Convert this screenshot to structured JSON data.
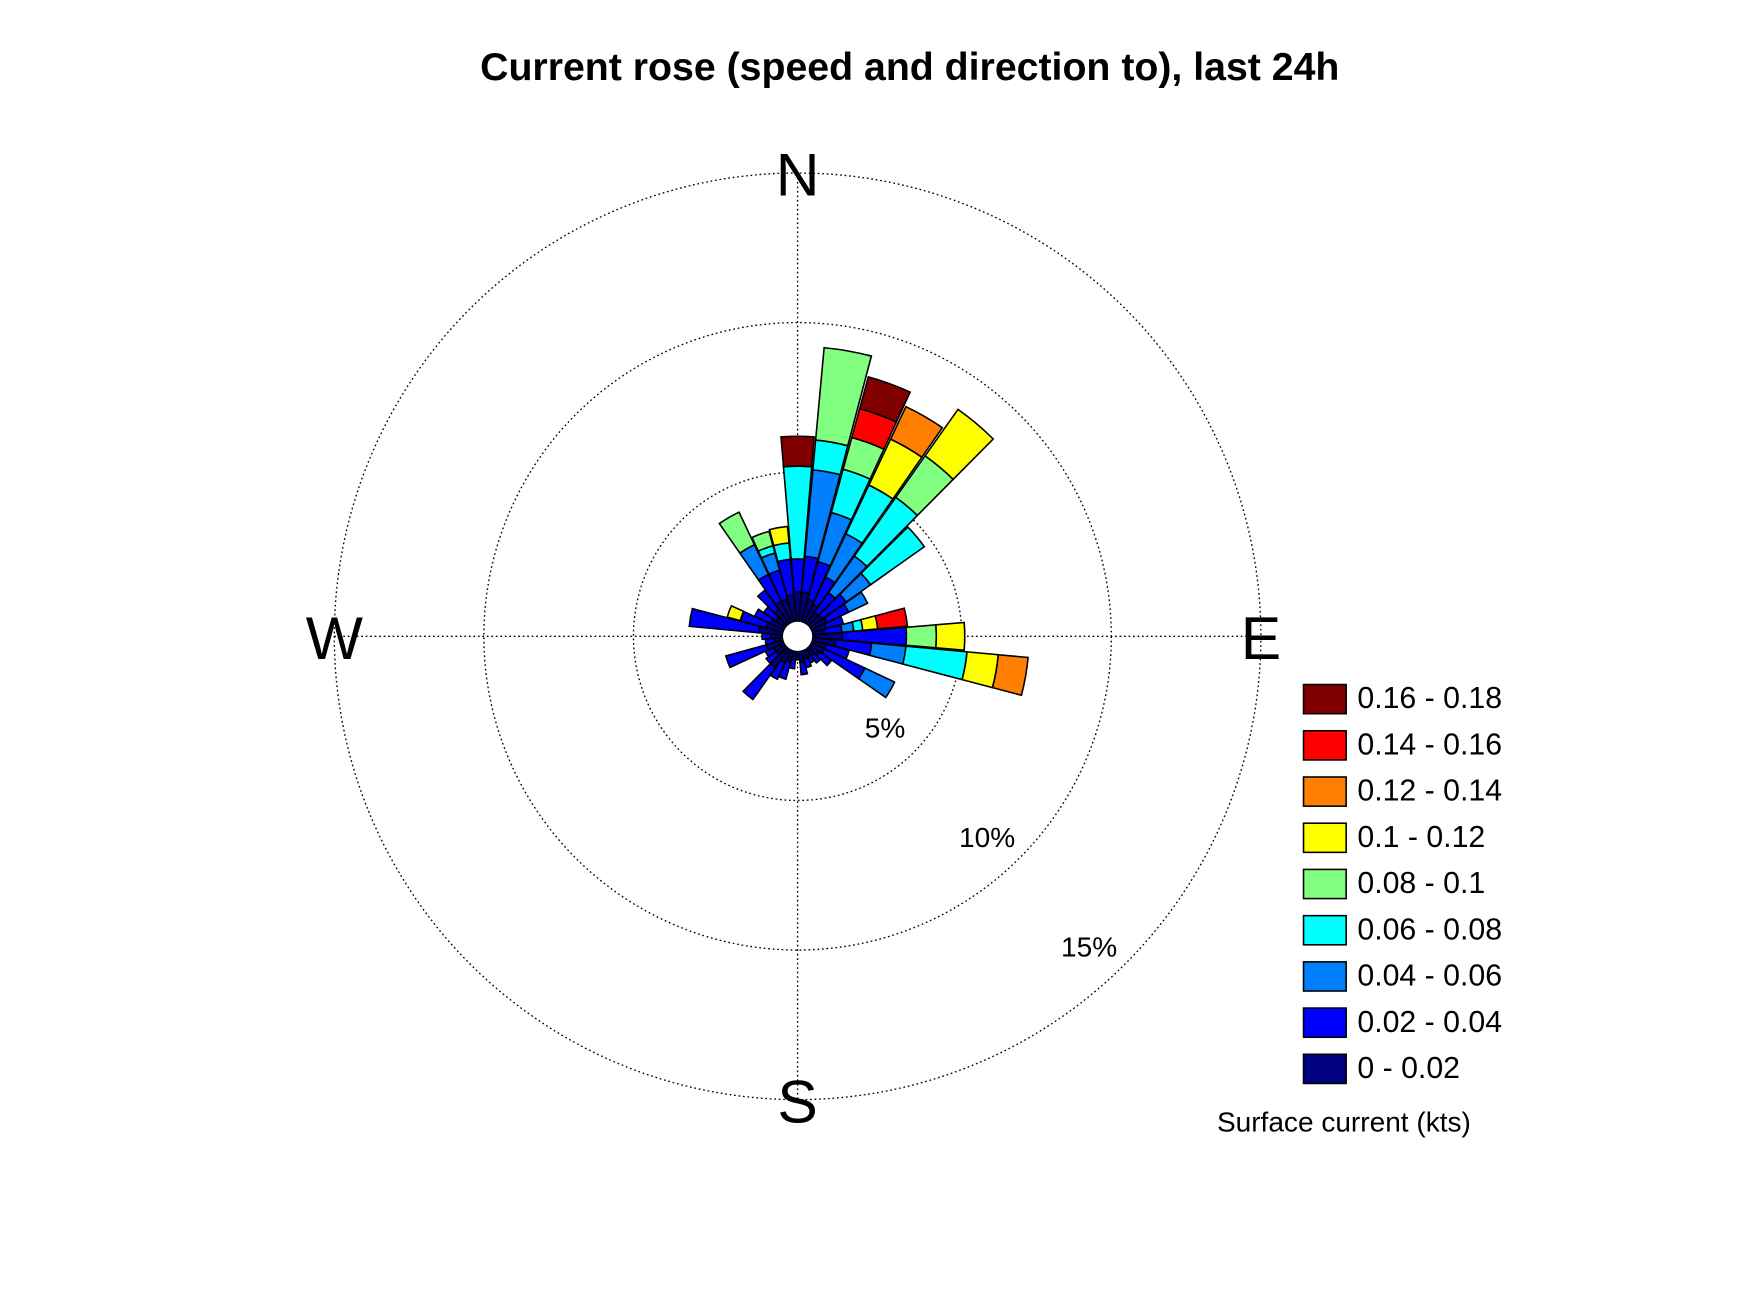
{
  "chart_data": {
    "type": "rose",
    "title": "Current rose (speed and direction to), last 24h",
    "categories": [
      "N",
      null,
      null,
      null,
      null,
      null,
      null,
      null,
      null,
      "E",
      null,
      null,
      null,
      null,
      null,
      null,
      null,
      null,
      "S",
      null,
      null,
      null,
      null,
      null,
      null,
      null,
      null,
      "W",
      null,
      null,
      null,
      null,
      null,
      null,
      null,
      null
    ],
    "rlim": [
      0,
      15
    ],
    "rticks": [
      {
        "value": 5,
        "label": "5%"
      },
      {
        "value": 10,
        "label": "10%"
      },
      {
        "value": 15,
        "label": "15%"
      }
    ],
    "grid": true,
    "legend_title": "Surface current (kts)",
    "legend_position": "lower right",
    "series": [
      {
        "name": "0 - 0.02",
        "color": "#000080",
        "values": [
          1.0,
          1.0,
          0.8,
          0.7,
          0.5,
          0.5,
          0.6,
          0.5,
          0.4,
          1.0,
          0.8,
          0.5,
          0.5,
          0.4,
          0.3,
          0.3,
          0.3,
          0.4,
          0.3,
          0.3,
          0.4,
          0.5,
          0.8,
          0.4,
          0.4,
          0.6,
          0.3,
          0.4,
          0.8,
          0.6,
          0.5,
          0.4,
          0.6,
          0.8,
          0.8,
          0.9
        ]
      },
      {
        "name": "0.02 - 0.04",
        "color": "#0000ff",
        "values": [
          1.1,
          1.2,
          1.3,
          1.0,
          0.8,
          1.0,
          0.8,
          0.6,
          0.6,
          2.15,
          1.2,
          0.8,
          1.5,
          0.5,
          0.3,
          0.2,
          0.3,
          0.4,
          0,
          0.3,
          0.6,
          0.6,
          1.3,
          0.4,
          0.3,
          1.4,
          0.3,
          0.3,
          2.35,
          0.9,
          0.6,
          0.5,
          0.8,
          1.0,
          1.0,
          1.2
        ]
      },
      {
        "name": "0.04 - 0.06",
        "color": "#0080ff",
        "values": [
          0,
          2.9,
          1.7,
          1.6,
          1.5,
          1.0,
          0.7,
          0,
          0.4,
          0,
          1.15,
          0,
          1.1,
          0,
          0,
          0,
          0,
          0,
          0,
          0,
          0,
          0,
          0,
          0,
          0,
          0,
          0,
          0,
          0,
          0,
          0,
          0,
          0,
          1.1,
          0.6,
          0
        ]
      },
      {
        "name": "0.06 - 0.08",
        "color": "#00ffff",
        "values": [
          3.1,
          1.0,
          1.5,
          1.8,
          2.4,
          2.2,
          0,
          0,
          0.3,
          0,
          2.05,
          0,
          0,
          0,
          0,
          0,
          0,
          0,
          0,
          0,
          0,
          0,
          0,
          0,
          0,
          0,
          0,
          0,
          0,
          0,
          0,
          0,
          0,
          0,
          0.25,
          0.55
        ]
      },
      {
        "name": "0.08 - 0.1",
        "color": "#80ff80",
        "values": [
          0,
          3.1,
          1.1,
          0,
          1.7,
          0,
          0,
          0,
          0,
          1.0,
          0,
          0,
          0,
          0,
          0,
          0,
          0,
          0,
          0,
          0,
          0,
          0,
          0,
          0,
          0,
          0,
          0,
          0,
          0,
          0,
          0,
          0,
          0,
          1.2,
          0.5,
          0
        ]
      },
      {
        "name": "0.1 - 0.12",
        "color": "#ffff00",
        "values": [
          0,
          0,
          0,
          1.7,
          1.9,
          0,
          0,
          0,
          0.5,
          0.95,
          1.05,
          0,
          0,
          0,
          0,
          0,
          0,
          0,
          0,
          0,
          0,
          0,
          0,
          0,
          0,
          0,
          0,
          0,
          0,
          0.45,
          0,
          0,
          0,
          0,
          0,
          0.55
        ]
      },
      {
        "name": "0.12 - 0.14",
        "color": "#ff8000",
        "values": [
          0,
          0,
          0,
          1.2,
          0,
          0,
          0,
          0,
          0,
          0,
          1.0,
          0,
          0,
          0,
          0,
          0,
          0,
          0,
          0,
          0,
          0,
          0,
          0,
          0,
          0,
          0,
          0,
          0,
          0,
          0,
          0,
          0,
          0,
          0,
          0,
          0
        ]
      },
      {
        "name": "0.14 - 0.16",
        "color": "#ff0000",
        "values": [
          0,
          0,
          1.0,
          0,
          0,
          0,
          0,
          0,
          1.0,
          0,
          0,
          0,
          0,
          0,
          0,
          0,
          0,
          0,
          0,
          0,
          0,
          0,
          0,
          0,
          0,
          0,
          0,
          0,
          0,
          0,
          0,
          0,
          0,
          0,
          0,
          0
        ]
      },
      {
        "name": "0.16 - 0.18",
        "color": "#800000",
        "values": [
          1.0,
          0,
          1.1,
          0,
          0,
          0,
          0,
          0,
          0,
          0,
          0,
          0,
          0,
          0,
          0,
          0,
          0,
          0,
          0,
          0,
          0,
          0,
          0,
          0,
          0,
          0,
          0,
          0,
          0,
          0,
          0,
          0,
          0,
          0,
          0,
          0
        ]
      }
    ]
  }
}
